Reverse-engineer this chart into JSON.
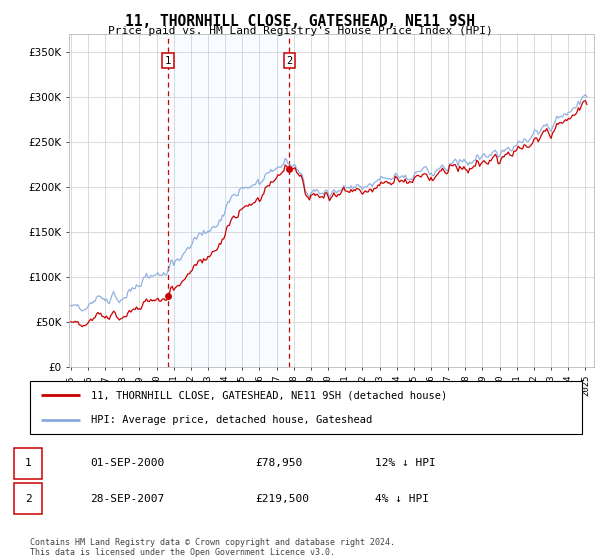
{
  "title": "11, THORNHILL CLOSE, GATESHEAD, NE11 9SH",
  "subtitle": "Price paid vs. HM Land Registry's House Price Index (HPI)",
  "property_label": "11, THORNHILL CLOSE, GATESHEAD, NE11 9SH (detached house)",
  "hpi_label": "HPI: Average price, detached house, Gateshead",
  "annotation1": {
    "num": "1",
    "date": "01-SEP-2000",
    "price": "£78,950",
    "note": "12% ↓ HPI"
  },
  "annotation2": {
    "num": "2",
    "date": "28-SEP-2007",
    "price": "£219,500",
    "note": "4% ↓ HPI"
  },
  "copyright": "Contains HM Land Registry data © Crown copyright and database right 2024.\nThis data is licensed under the Open Government Licence v3.0.",
  "sale1_year": 2000.67,
  "sale1_value": 78950,
  "sale2_year": 2007.74,
  "sale2_value": 219500,
  "property_color": "#cc0000",
  "hpi_color": "#88aadd",
  "background_color": "#ffffff",
  "grid_color": "#cccccc",
  "annotation_box_color": "#cc0000",
  "shade_color": "#ddeeff",
  "ylim": [
    0,
    370000
  ],
  "xlim_start": 1994.9,
  "xlim_end": 2025.5
}
